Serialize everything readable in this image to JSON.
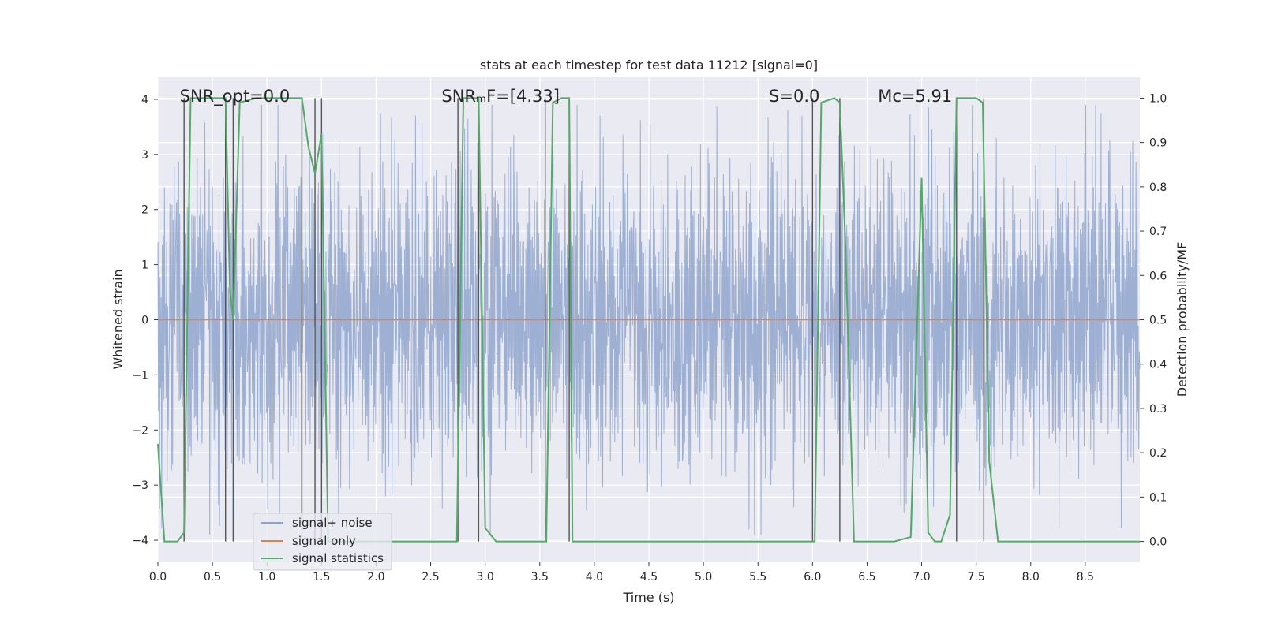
{
  "chart_data": {
    "type": "line",
    "title": "stats at each timestep for test data 11212 [signal=0]",
    "xlabel": "Time (s)",
    "ylabel": "Whitened strain",
    "y2label": "Detection probability/MF",
    "xlim": [
      0.0,
      9.0
    ],
    "ylim": [
      -4.4,
      4.4
    ],
    "y2lim": [
      -0.047,
      1.047
    ],
    "x_ticks": [
      0.0,
      0.5,
      1.0,
      1.5,
      2.0,
      2.5,
      3.0,
      3.5,
      4.0,
      4.5,
      5.0,
      5.5,
      6.0,
      6.5,
      7.0,
      7.5,
      8.0,
      8.5
    ],
    "x_tick_labels": [
      "0.0",
      "0.5",
      "1.0",
      "1.5",
      "2.0",
      "2.5",
      "3.0",
      "3.5",
      "4.0",
      "4.5",
      "5.0",
      "5.5",
      "6.0",
      "6.5",
      "7.0",
      "7.5",
      "8.0",
      "8.5"
    ],
    "y_ticks": [
      4,
      3,
      2,
      1,
      0,
      -1,
      -2,
      -3,
      -4
    ],
    "y_tick_labels": [
      "4",
      "3",
      "2",
      "1",
      "0",
      "−1",
      "−2",
      "−3",
      "−4"
    ],
    "y2_ticks": [
      1.0,
      0.9,
      0.8,
      0.7,
      0.6,
      0.5,
      0.4,
      0.3,
      0.2,
      0.1,
      0.0
    ],
    "y2_tick_labels": [
      "1.0",
      "0.9",
      "0.8",
      "0.7",
      "0.6",
      "0.5",
      "0.4",
      "0.3",
      "0.2",
      "0.1",
      "0.0"
    ],
    "annotations": [
      {
        "name": "annotation-snr-opt",
        "text": "SNR_opt=0.0",
        "x": 0.2
      },
      {
        "name": "annotation-snr-mf",
        "text": "SNRₘF=[4.33]",
        "x": 2.6
      },
      {
        "name": "annotation-s",
        "text": "S=0.0",
        "x": 5.6
      },
      {
        "name": "annotation-mc",
        "text": "Mᴄ=5.91",
        "x": 6.6
      }
    ],
    "vertical_lines": [
      0.24,
      0.62,
      0.69,
      1.32,
      1.44,
      1.5,
      2.75,
      2.94,
      3.55,
      3.77,
      6.0,
      6.25,
      7.32,
      7.57
    ],
    "series": [
      {
        "name": "signal+ noise",
        "color": "#8fa4cc",
        "axis": "left",
        "style": "dense noise, amplitude about ±2 with peaks near ±3.9",
        "n_samples": 1800,
        "seed": 11212
      },
      {
        "name": "signal only",
        "color": "#dd8452",
        "axis": "left",
        "x": [
          0.0,
          9.0
        ],
        "y": [
          0.0,
          0.0
        ]
      },
      {
        "name": "signal statistics",
        "color": "#55a868",
        "axis": "right",
        "x": [
          0.0,
          0.06,
          0.18,
          0.24,
          0.3,
          0.4,
          0.5,
          0.6,
          0.62,
          0.66,
          0.69,
          0.75,
          0.9,
          1.0,
          1.2,
          1.32,
          1.38,
          1.44,
          1.5,
          1.56,
          1.62,
          2.0,
          2.5,
          2.74,
          2.8,
          2.86,
          2.9,
          2.94,
          3.0,
          3.1,
          3.2,
          3.5,
          3.56,
          3.62,
          3.7,
          3.77,
          3.8,
          3.9,
          4.5,
          5.0,
          5.5,
          5.98,
          6.02,
          6.08,
          6.2,
          6.25,
          6.3,
          6.38,
          6.5,
          6.75,
          6.9,
          7.0,
          7.06,
          7.12,
          7.18,
          7.26,
          7.32,
          7.38,
          7.44,
          7.5,
          7.56,
          7.62,
          7.7,
          8.0,
          8.1,
          8.5,
          9.0
        ],
        "y": [
          0.22,
          0.0,
          0.0,
          0.02,
          1.0,
          1.0,
          1.0,
          1.0,
          1.0,
          0.57,
          0.5,
          0.99,
          1.0,
          1.0,
          1.0,
          1.0,
          0.89,
          0.83,
          0.92,
          0.0,
          0.0,
          0.0,
          0.0,
          0.0,
          1.0,
          1.0,
          1.0,
          1.0,
          0.03,
          0.0,
          0.0,
          0.0,
          0.0,
          0.99,
          1.0,
          1.0,
          0.0,
          0.0,
          0.0,
          0.0,
          0.0,
          0.0,
          0.0,
          0.99,
          1.0,
          0.99,
          0.68,
          0.0,
          0.0,
          0.0,
          0.01,
          0.82,
          0.02,
          0.0,
          0.0,
          0.06,
          1.0,
          1.0,
          1.0,
          1.0,
          0.99,
          0.18,
          0.0,
          0.0,
          0.0,
          0.0,
          0.0
        ]
      }
    ],
    "legend": {
      "placement": "lower-left",
      "entries": [
        "signal+ noise",
        "signal only",
        "signal statistics"
      ]
    },
    "colors": {
      "plot_background": "#eaeaf2",
      "grid": "#ffffff",
      "vline": "#555555"
    }
  }
}
